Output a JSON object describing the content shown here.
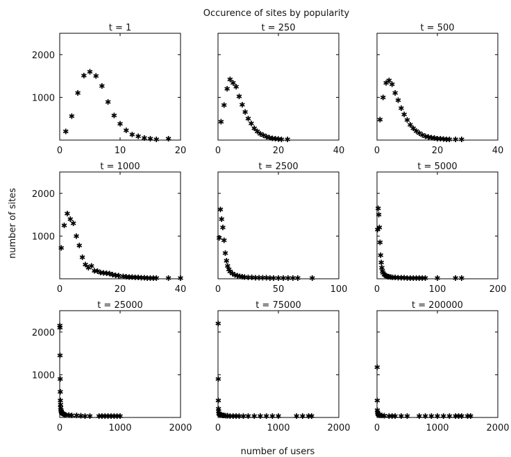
{
  "figure": {
    "title": "Occurence of sites by popularity",
    "xlabel": "number of users",
    "ylabel": "number of sites"
  },
  "chart_data": [
    {
      "type": "scatter",
      "title": "t = 1",
      "xlim": [
        0,
        20
      ],
      "ylim": [
        0,
        2500
      ],
      "xticks": [
        0,
        10,
        20
      ],
      "yticks": [
        1000,
        2000
      ],
      "show_yticks": true,
      "x": [
        1,
        2,
        3,
        4,
        5,
        6,
        7,
        8,
        9,
        10,
        11,
        12,
        13,
        14,
        15,
        16,
        18
      ],
      "y": [
        200,
        560,
        1100,
        1510,
        1600,
        1500,
        1270,
        890,
        580,
        380,
        230,
        130,
        90,
        50,
        30,
        20,
        30
      ]
    },
    {
      "type": "scatter",
      "title": "t = 250",
      "xlim": [
        0,
        40
      ],
      "ylim": [
        0,
        2500
      ],
      "xticks": [
        0,
        20,
        40
      ],
      "yticks": [
        1000,
        2000
      ],
      "show_yticks": false,
      "x": [
        1,
        2,
        3,
        4,
        5,
        6,
        7,
        8,
        9,
        10,
        11,
        12,
        13,
        14,
        15,
        16,
        17,
        18,
        19,
        20,
        21,
        23
      ],
      "y": [
        430,
        820,
        1200,
        1420,
        1340,
        1250,
        1020,
        830,
        660,
        500,
        390,
        280,
        200,
        150,
        110,
        80,
        60,
        40,
        30,
        25,
        20,
        20
      ]
    },
    {
      "type": "scatter",
      "title": "t = 500",
      "xlim": [
        0,
        40
      ],
      "ylim": [
        0,
        2500
      ],
      "xticks": [
        0,
        20,
        40
      ],
      "yticks": [
        1000,
        2000
      ],
      "show_yticks": false,
      "x": [
        1,
        2,
        3,
        4,
        5,
        6,
        7,
        8,
        9,
        10,
        11,
        12,
        13,
        14,
        15,
        16,
        17,
        18,
        19,
        20,
        21,
        22,
        23,
        24,
        26,
        28
      ],
      "y": [
        480,
        1000,
        1340,
        1400,
        1310,
        1100,
        930,
        750,
        600,
        470,
        360,
        280,
        210,
        160,
        120,
        90,
        70,
        55,
        45,
        35,
        30,
        25,
        20,
        20,
        20,
        20
      ]
    },
    {
      "type": "scatter",
      "title": "t = 1000",
      "xlim": [
        0,
        40
      ],
      "ylim": [
        0,
        2500
      ],
      "xticks": [
        0,
        20,
        40
      ],
      "yticks": [
        1000,
        2000
      ],
      "show_yticks": true,
      "x": [
        0.5,
        1.5,
        2.5,
        3.5,
        4.5,
        5.5,
        6.5,
        7.5,
        8.5,
        9.5,
        10.5,
        11.5,
        12.5,
        13.5,
        14.5,
        15.5,
        16.5,
        17.5,
        18.5,
        19.5,
        21,
        22,
        23,
        24,
        25,
        26,
        27,
        28,
        29,
        30,
        31,
        32,
        36,
        40
      ],
      "y": [
        720,
        1250,
        1530,
        1400,
        1300,
        1000,
        780,
        500,
        330,
        260,
        300,
        190,
        180,
        150,
        140,
        130,
        120,
        100,
        80,
        70,
        60,
        50,
        40,
        40,
        30,
        30,
        25,
        25,
        20,
        20,
        20,
        20,
        20,
        20
      ]
    },
    {
      "type": "scatter",
      "title": "t = 2500",
      "xlim": [
        0,
        100
      ],
      "ylim": [
        0,
        2500
      ],
      "xticks": [
        0,
        50,
        100
      ],
      "yticks": [
        1000,
        2000
      ],
      "show_yticks": false,
      "x": [
        1,
        2,
        3,
        4,
        5,
        6,
        7,
        8,
        9,
        10,
        12,
        14,
        16,
        18,
        20,
        22,
        25,
        28,
        31,
        34,
        37,
        40,
        43,
        46,
        50,
        54,
        58,
        62,
        66,
        78
      ],
      "y": [
        960,
        1620,
        1400,
        1200,
        900,
        600,
        420,
        300,
        220,
        170,
        120,
        90,
        70,
        60,
        50,
        40,
        35,
        30,
        28,
        26,
        24,
        22,
        20,
        20,
        20,
        20,
        20,
        20,
        20,
        20
      ]
    },
    {
      "type": "scatter",
      "title": "t = 5000",
      "xlim": [
        0,
        200
      ],
      "ylim": [
        0,
        2500
      ],
      "xticks": [
        0,
        100,
        200
      ],
      "yticks": [
        1000,
        2000
      ],
      "show_yticks": false,
      "x": [
        1,
        2,
        3,
        4,
        5,
        6,
        7,
        8,
        9,
        10,
        12,
        14,
        16,
        18,
        20,
        23,
        26,
        30,
        35,
        40,
        45,
        50,
        55,
        60,
        65,
        70,
        75,
        80,
        100,
        130,
        140
      ],
      "y": [
        1150,
        1650,
        1500,
        1200,
        850,
        550,
        380,
        260,
        180,
        140,
        100,
        80,
        60,
        50,
        45,
        40,
        35,
        30,
        28,
        25,
        22,
        20,
        20,
        20,
        20,
        20,
        20,
        20,
        20,
        20,
        20
      ]
    },
    {
      "type": "scatter",
      "title": "t = 25000",
      "xlim": [
        0,
        2000
      ],
      "ylim": [
        0,
        2500
      ],
      "xticks": [
        0,
        1000,
        2000
      ],
      "yticks": [
        1000,
        2000
      ],
      "show_yticks": true,
      "x": [
        2,
        4,
        6,
        8,
        10,
        12,
        14,
        16,
        20,
        25,
        30,
        40,
        50,
        60,
        80,
        100,
        150,
        200,
        280,
        350,
        420,
        500,
        650,
        700,
        750,
        800,
        850,
        900,
        950,
        1000
      ],
      "y": [
        2150,
        2100,
        1450,
        900,
        600,
        400,
        300,
        230,
        180,
        150,
        120,
        100,
        90,
        80,
        70,
        60,
        55,
        50,
        45,
        40,
        35,
        30,
        30,
        30,
        30,
        30,
        30,
        30,
        30,
        30
      ]
    },
    {
      "type": "scatter",
      "title": "t = 75000",
      "xlim": [
        0,
        2000
      ],
      "ylim": [
        0,
        2500
      ],
      "xticks": [
        0,
        1000,
        2000
      ],
      "yticks": [
        1000,
        2000
      ],
      "show_yticks": false,
      "x": [
        2,
        4,
        6,
        8,
        10,
        15,
        20,
        30,
        40,
        60,
        80,
        100,
        130,
        160,
        200,
        250,
        300,
        350,
        420,
        500,
        600,
        700,
        800,
        900,
        1000,
        1300,
        1400,
        1500,
        1550
      ],
      "y": [
        2200,
        900,
        400,
        200,
        150,
        100,
        80,
        70,
        60,
        55,
        50,
        45,
        40,
        40,
        35,
        30,
        30,
        30,
        30,
        30,
        30,
        30,
        30,
        30,
        30,
        30,
        30,
        30,
        30
      ]
    },
    {
      "type": "scatter",
      "title": "t = 200000",
      "xlim": [
        0,
        2000
      ],
      "ylim": [
        0,
        2500
      ],
      "xticks": [
        0,
        1000,
        2000
      ],
      "yticks": [
        1000,
        2000
      ],
      "show_yticks": false,
      "x": [
        2,
        4,
        6,
        10,
        15,
        20,
        30,
        50,
        80,
        120,
        200,
        250,
        300,
        400,
        500,
        700,
        800,
        900,
        1000,
        1100,
        1200,
        1300,
        1350,
        1400,
        1500,
        1550
      ],
      "y": [
        1180,
        400,
        170,
        120,
        90,
        70,
        60,
        50,
        45,
        40,
        35,
        30,
        30,
        30,
        30,
        30,
        30,
        30,
        30,
        30,
        30,
        30,
        30,
        30,
        30,
        30
      ]
    }
  ]
}
